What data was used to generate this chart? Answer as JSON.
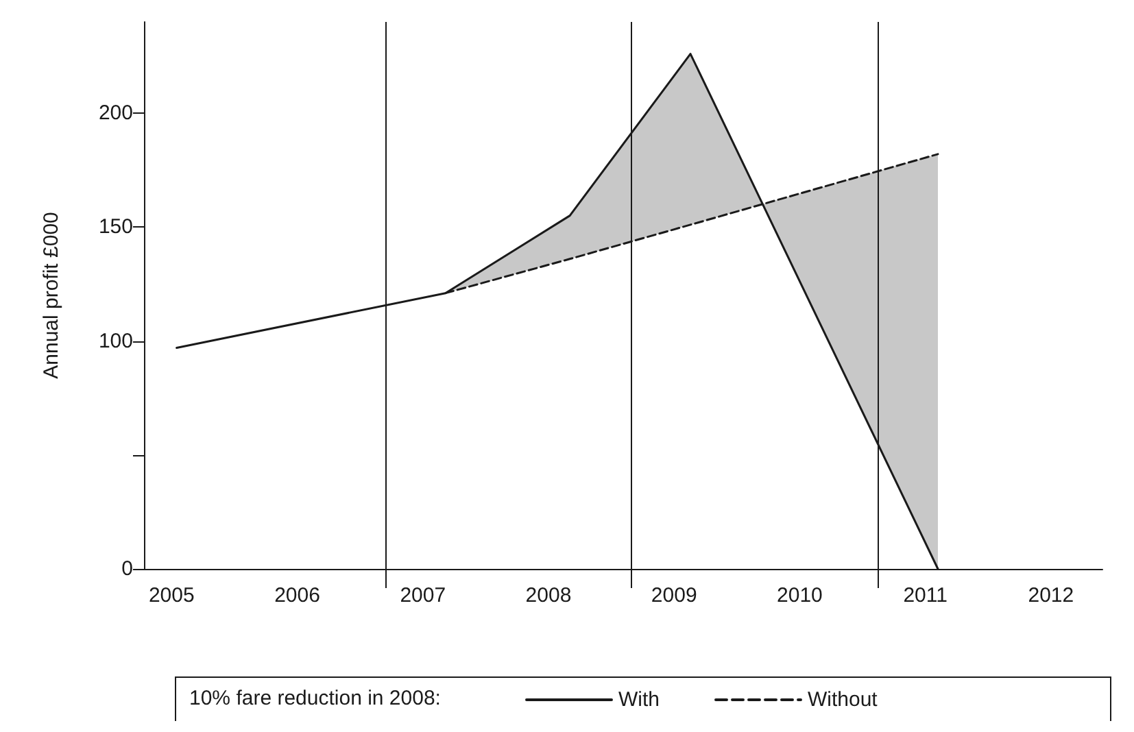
{
  "chart_data": {
    "type": "line",
    "ylabel": "Annual profit £000",
    "legend_title": "10% fare reduction in 2008:",
    "legend": "bottom",
    "grid": false,
    "marker": "none",
    "xlim": [
      2004.78,
      2012.41
    ],
    "xticks": [
      2005,
      2006,
      2007,
      2008,
      2009,
      2010,
      2011,
      2012
    ],
    "ylim": [
      0,
      240
    ],
    "yticks": [
      0,
      {
        "value": 50,
        "label": null
      },
      100,
      150,
      200
    ],
    "series": [
      {
        "name": "With",
        "color": "#1a1a1a",
        "line_style": "solid",
        "x": [
          2005.04,
          2007.18,
          2008.17,
          2009.13,
          2011.1
        ],
        "values": [
          97,
          121,
          155,
          226,
          0
        ]
      },
      {
        "name": "Without",
        "color": "#1a1a1a",
        "line_style": "dashed",
        "x": [
          2007.18,
          2008.17,
          2009.13,
          2011.1
        ],
        "values": [
          121,
          136,
          151,
          182
        ],
        "lower": [
          121,
          136,
          151,
          182
        ],
        "upper": [
          121,
          155,
          226,
          0
        ]
      }
    ],
    "ref_lines": [
      {
        "axis": "x",
        "value": 2006.7,
        "color": "#1a1a1a",
        "line_style": "solid"
      },
      {
        "axis": "x",
        "value": 2008.66,
        "color": "#1a1a1a",
        "line_style": "solid"
      },
      {
        "axis": "x",
        "value": 2010.62,
        "color": "#1a1a1a",
        "line_style": "solid"
      }
    ]
  }
}
